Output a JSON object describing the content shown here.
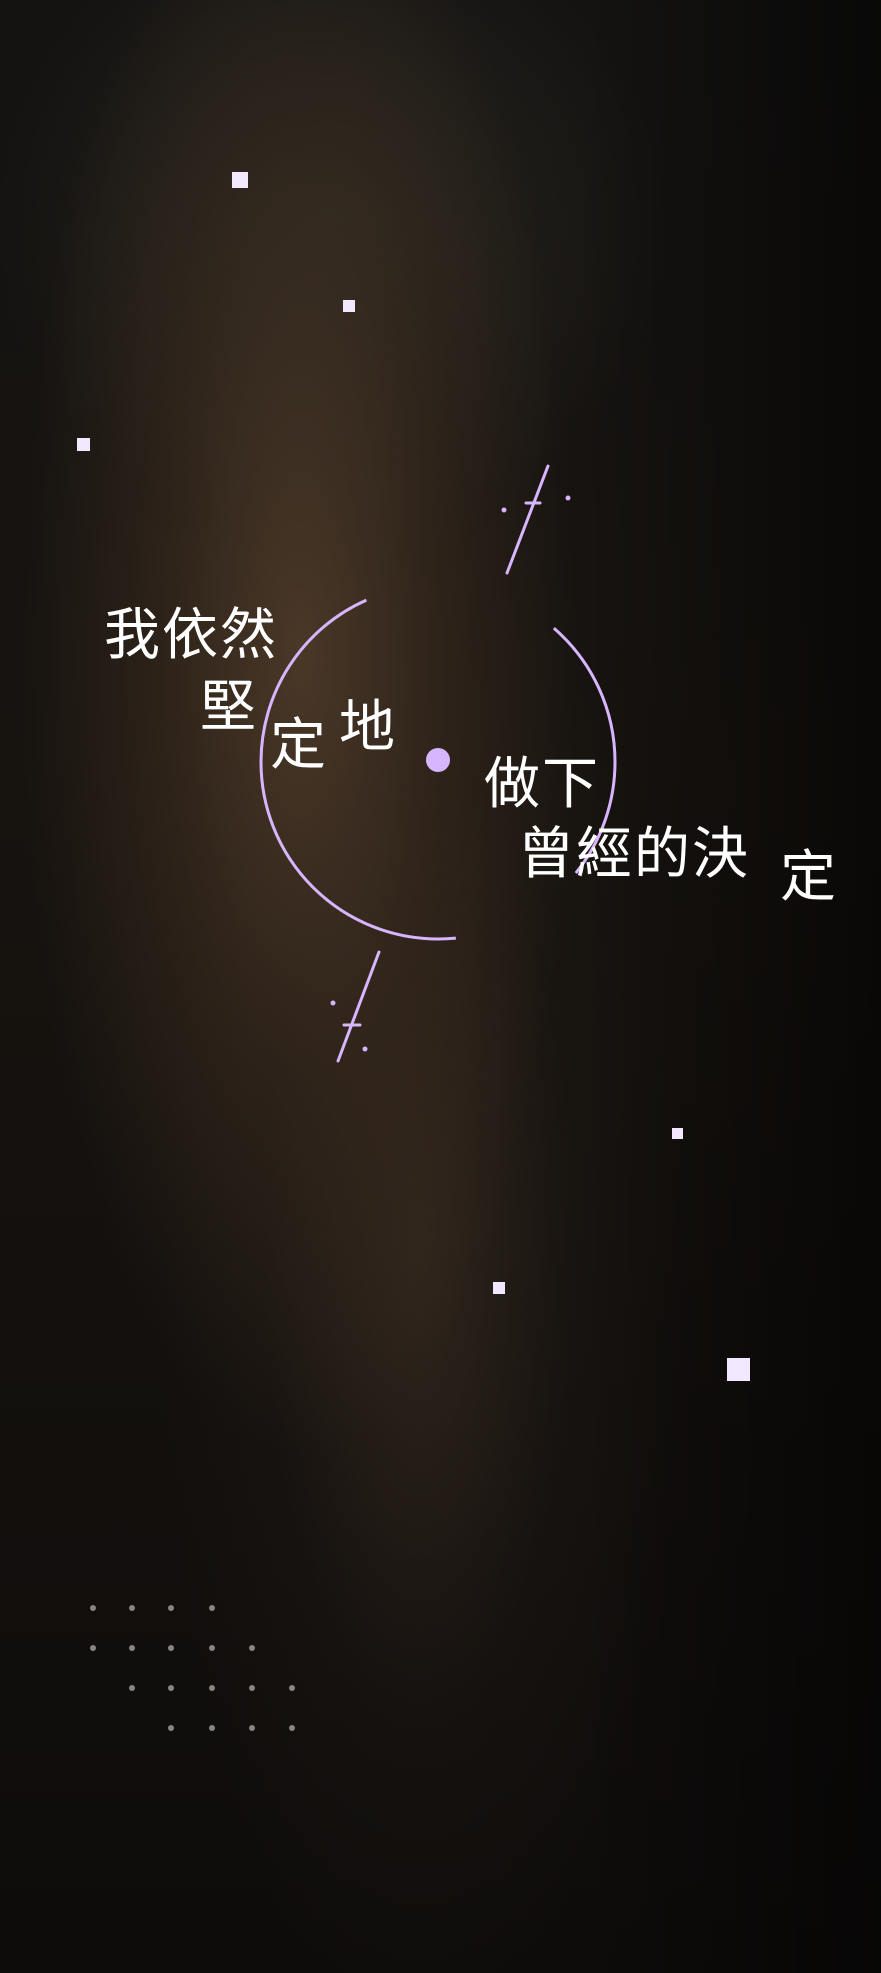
{
  "poem": {
    "line1": "我依然",
    "line2_a": "堅",
    "line2_b": "定",
    "line2_c": "地",
    "line3": "做下",
    "line4_a": "曾經的決",
    "line4_b": "定"
  },
  "colors": {
    "accent": "#d8b6ff",
    "text": "#ffffff",
    "sparkle": "#f2e8ff"
  }
}
